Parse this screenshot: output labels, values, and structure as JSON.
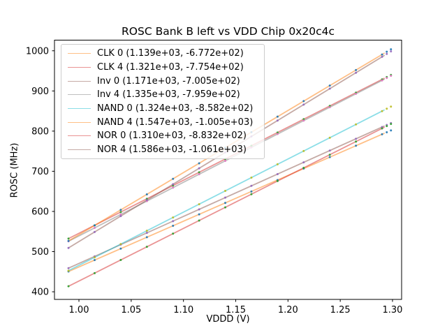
{
  "chart_data": {
    "type": "line",
    "title": "ROSC Bank B left vs VDD Chip 0x20c4c",
    "xlabel": "VDDD (V)",
    "ylabel": "ROSC (MHz)",
    "xlim": [
      0.9766,
      1.3087
    ],
    "ylim": [
      381,
      1026.5
    ],
    "x_ticks": [
      {
        "value": 1.0,
        "label": "1.00"
      },
      {
        "value": 1.05,
        "label": "1.05"
      },
      {
        "value": 1.1,
        "label": "1.10"
      },
      {
        "value": 1.15,
        "label": "1.15"
      },
      {
        "value": 1.2,
        "label": "1.20"
      },
      {
        "value": 1.25,
        "label": "1.25"
      },
      {
        "value": 1.3,
        "label": "1.30"
      }
    ],
    "y_ticks": [
      {
        "value": 400,
        "label": "400"
      },
      {
        "value": 500,
        "label": "500"
      },
      {
        "value": 600,
        "label": "600"
      },
      {
        "value": 700,
        "label": "700"
      },
      {
        "value": 800,
        "label": "800"
      },
      {
        "value": 900,
        "label": "900"
      },
      {
        "value": 1000,
        "label": "1000"
      }
    ],
    "grid": false,
    "legend_position": "upper left",
    "fit_line_x_range": [
      0.99,
      1.292
    ],
    "scatter_x": [
      0.99,
      1.015,
      1.04,
      1.065,
      1.09,
      1.115,
      1.14,
      1.165,
      1.19,
      1.215,
      1.24,
      1.265,
      1.29,
      1.2945,
      1.2985
    ],
    "series": [
      {
        "name": "CLK 0",
        "legend_label": "CLK 0 (1.139e+03, -6.772e+02)",
        "slope": 1139,
        "intercept": -677.2,
        "line_color": "#ff7f0e",
        "marker_color": "#1f77b4"
      },
      {
        "name": "CLK 4",
        "legend_label": "CLK 4 (1.321e+03, -7.754e+02)",
        "slope": 1321,
        "intercept": -775.4,
        "line_color": "#d62728",
        "marker_color": "#2ca02c"
      },
      {
        "name": "Inv 0",
        "legend_label": "Inv 0 (1.171e+03, -7.005e+02)",
        "slope": 1171,
        "intercept": -700.5,
        "line_color": "#8c564b",
        "marker_color": "#9467bd"
      },
      {
        "name": "Inv 4",
        "legend_label": "Inv 4 (1.335e+03, -7.959e+02)",
        "slope": 1335,
        "intercept": -795.9,
        "line_color": "#7f7f7f",
        "marker_color": "#e377c2"
      },
      {
        "name": "NAND 0",
        "legend_label": "NAND 0 (1.324e+03, -8.582e+02)",
        "slope": 1324,
        "intercept": -858.2,
        "line_color": "#17becf",
        "marker_color": "#bcbd22"
      },
      {
        "name": "NAND 4",
        "legend_label": "NAND 4 (1.547e+03, -1.005e+03)",
        "slope": 1547,
        "intercept": -1005,
        "line_color": "#ff7f0e",
        "marker_color": "#1f77b4"
      },
      {
        "name": "NOR 0",
        "legend_label": "NOR 0 (1.310e+03, -8.832e+02)",
        "slope": 1310,
        "intercept": -883.2,
        "line_color": "#d62728",
        "marker_color": "#2ca02c"
      },
      {
        "name": "NOR 4",
        "legend_label": "NOR 4 (1.586e+03, -1.061e+03)",
        "slope": 1586,
        "intercept": -1061,
        "line_color": "#8c564b",
        "marker_color": "#9467bd"
      }
    ]
  }
}
